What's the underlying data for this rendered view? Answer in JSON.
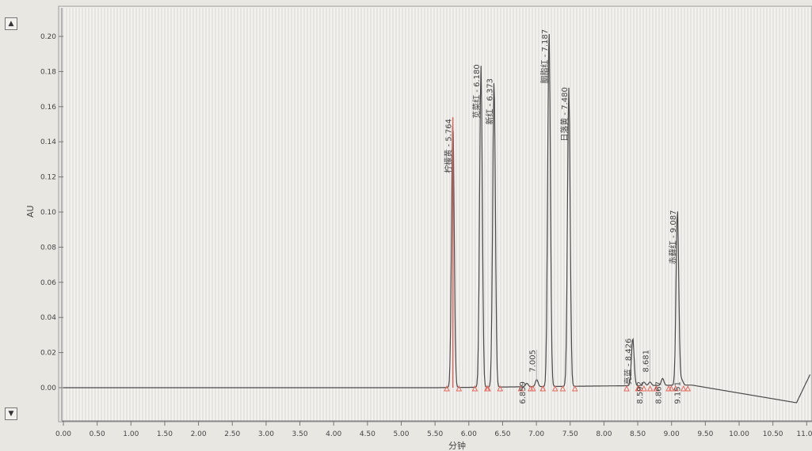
{
  "controls": {
    "scroll_up": "▲",
    "scroll_down": "▼"
  },
  "chart_data": {
    "type": "line",
    "title": "",
    "xlabel": "分钟",
    "ylabel": "AU",
    "xlim": [
      0,
      11.0
    ],
    "ylim": [
      -0.02,
      0.21
    ],
    "x_ticks": [
      "0.00",
      "0.50",
      "1.00",
      "1.50",
      "2.00",
      "2.50",
      "3.00",
      "3.50",
      "4.00",
      "4.50",
      "5.00",
      "5.50",
      "6.00",
      "6.50",
      "7.00",
      "7.50",
      "8.00",
      "8.50",
      "9.00",
      "9.50",
      "10.00",
      "10.50",
      "11.00"
    ],
    "y_ticks": [
      "0.00",
      "0.02",
      "0.04",
      "0.06",
      "0.08",
      "0.10",
      "0.12",
      "0.14",
      "0.16",
      "0.18",
      "0.20"
    ],
    "grid": "vertical fine lines",
    "colors": {
      "trace": "#4a4a4a",
      "first_peak": "#e0605a",
      "markers": "#e06a60"
    },
    "peaks": [
      {
        "rt": 5.764,
        "height": 0.152,
        "label": "柠檬黄 - 5.764"
      },
      {
        "rt": 6.18,
        "height": 0.183,
        "label": "苋菜红 - 6.180"
      },
      {
        "rt": 6.373,
        "height": 0.175,
        "label": "新红 - 6.373"
      },
      {
        "rt": 6.859,
        "height": 0.002,
        "label": "6.859"
      },
      {
        "rt": 7.005,
        "height": 0.004,
        "label": "7.005"
      },
      {
        "rt": 7.187,
        "height": 0.203,
        "label": "胭脂红 - 7.187"
      },
      {
        "rt": 7.48,
        "height": 0.17,
        "label": "日落黄 - 7.480"
      },
      {
        "rt": 8.426,
        "height": 0.027,
        "label": "亮蓝 - 8.426"
      },
      {
        "rt": 8.592,
        "height": 0.002,
        "label": "8.592"
      },
      {
        "rt": 8.681,
        "height": 0.002,
        "label": "8.681"
      },
      {
        "rt": 8.867,
        "height": 0.004,
        "label": "8.867"
      },
      {
        "rt": 9.087,
        "height": 0.1,
        "label": "赤藓红 - 9.087"
      },
      {
        "rt": 9.151,
        "height": 0.003,
        "label": "9.151"
      }
    ]
  }
}
